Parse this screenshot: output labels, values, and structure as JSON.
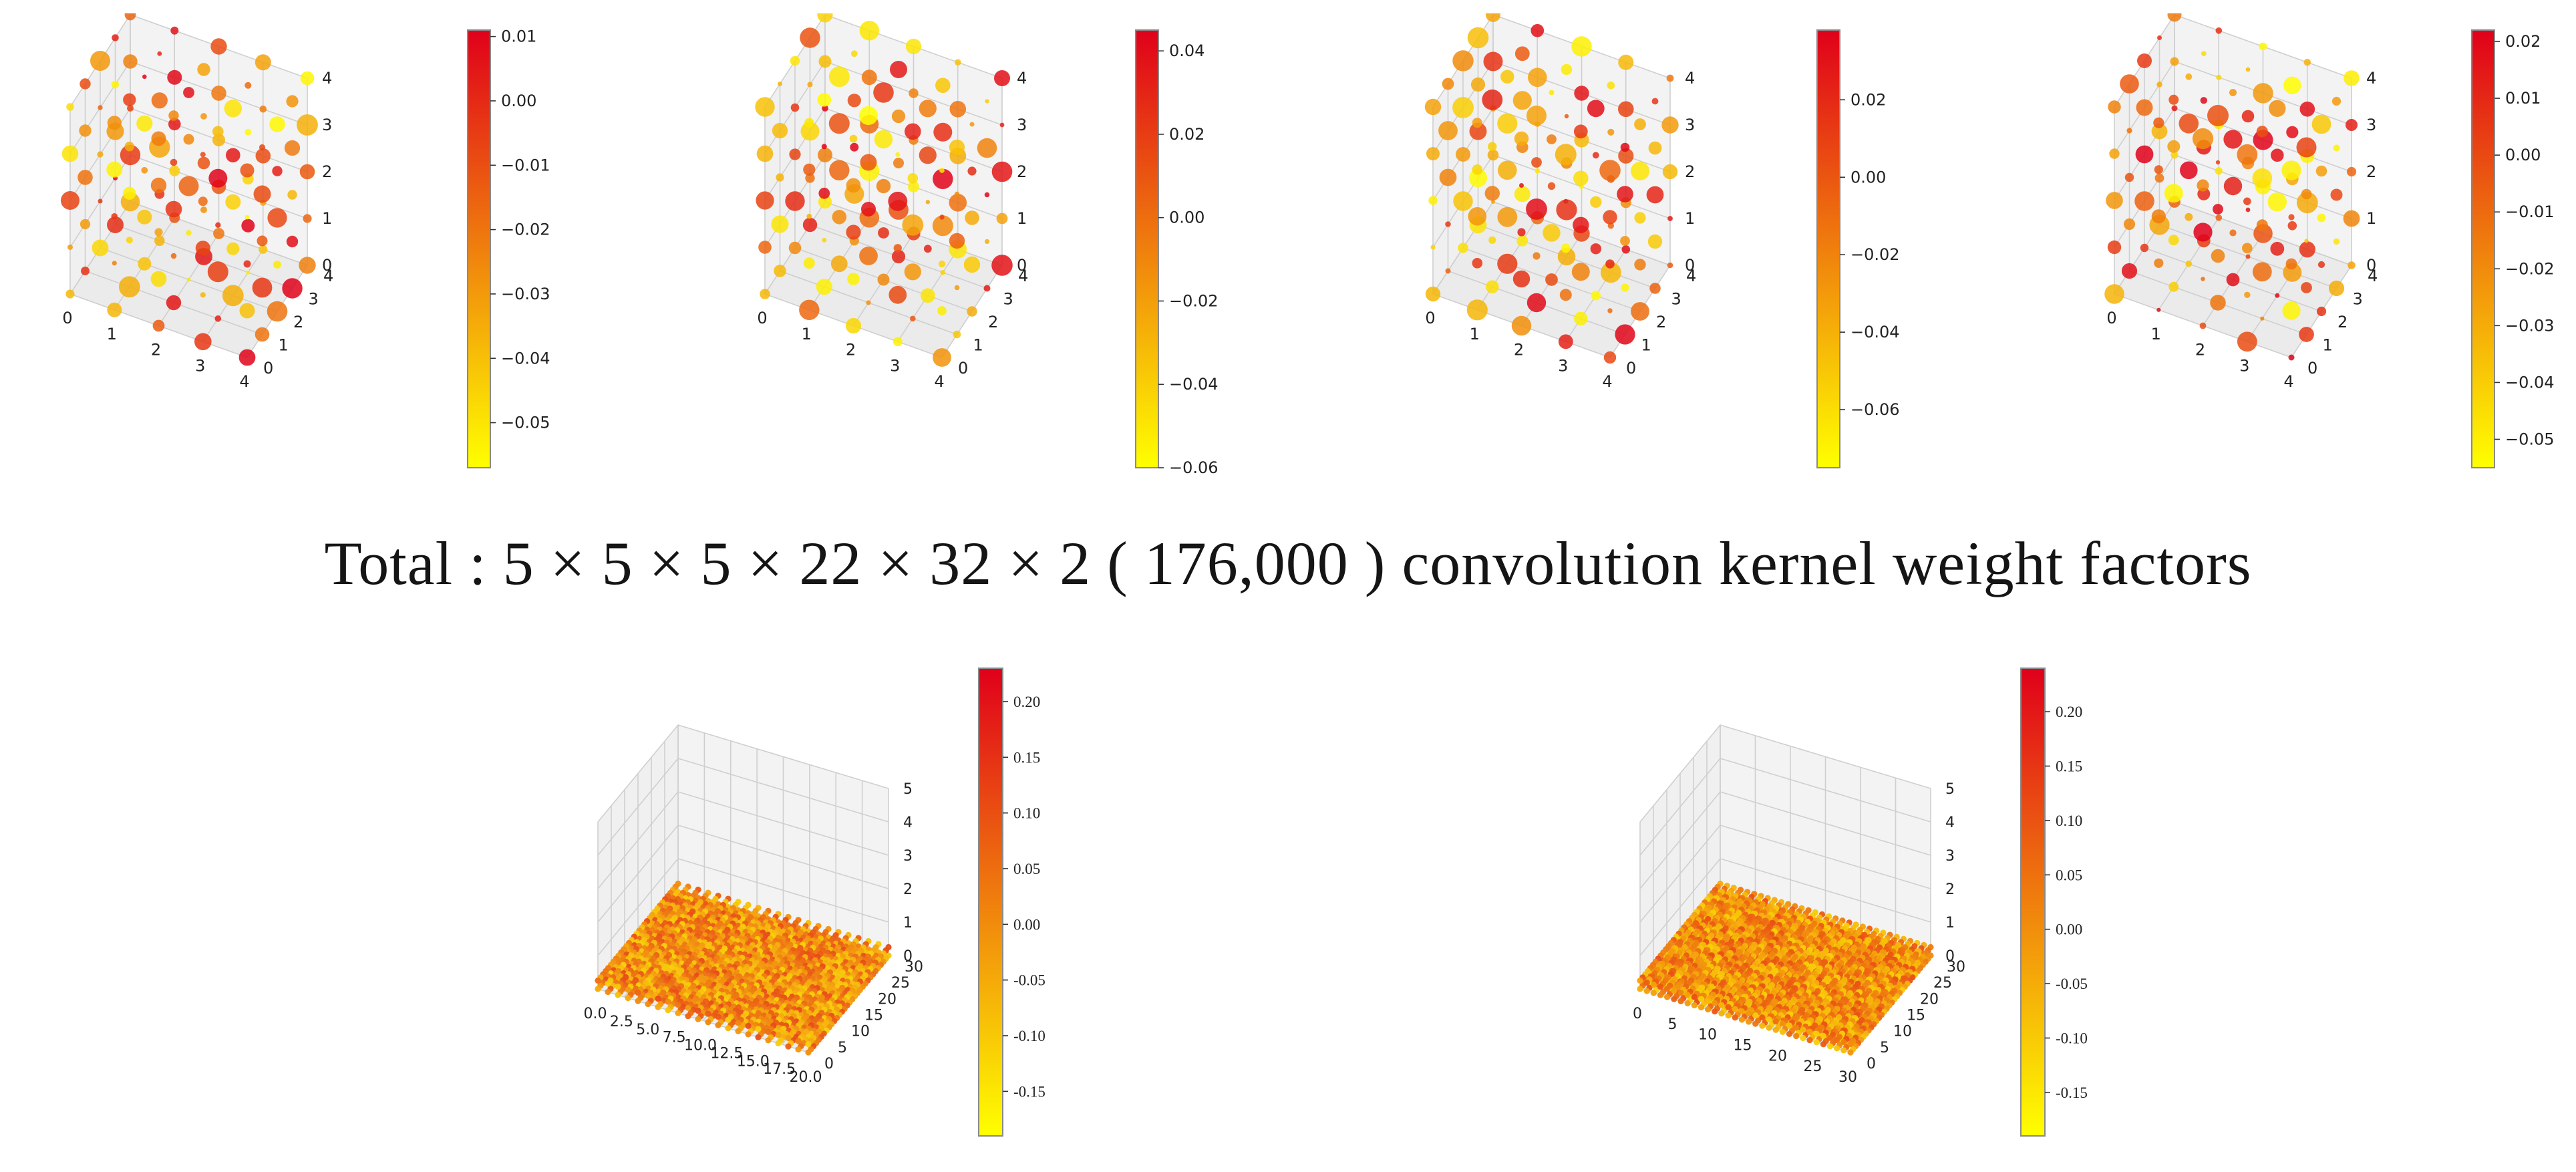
{
  "caption": "Total : 5 × 5 × 5 × 22 × 32 × 2 ( 176,000 ) convolution kernel weight factors",
  "colormap": {
    "name": "autumn_r",
    "low": "#ffff00",
    "high": "#e0001a",
    "edge": "#8a8a8a"
  },
  "chart_data": [
    {
      "id": "kernel-1",
      "type": "scatter3d",
      "title": "",
      "x_ticks": [
        "0",
        "1",
        "2",
        "3",
        "4"
      ],
      "y_ticks": [
        "0",
        "1",
        "2",
        "3",
        "4"
      ],
      "z_ticks": [
        "0",
        "1",
        "2",
        "3",
        "4"
      ],
      "xlim": [
        0,
        4
      ],
      "ylim": [
        0,
        4
      ],
      "zlim": [
        0,
        4
      ],
      "grid_shape": [
        5,
        5,
        5
      ],
      "seed": 11,
      "color_range": [
        -0.057,
        0.011
      ],
      "colorbar_ticks": [
        {
          "v": 0.01,
          "t": "0.01"
        },
        {
          "v": 0.0,
          "t": "0.00"
        },
        {
          "v": -0.01,
          "t": "−0.01"
        },
        {
          "v": -0.02,
          "t": "−0.02"
        },
        {
          "v": -0.03,
          "t": "−0.03"
        },
        {
          "v": -0.04,
          "t": "−0.04"
        },
        {
          "v": -0.05,
          "t": "−0.05"
        }
      ]
    },
    {
      "id": "kernel-2",
      "type": "scatter3d",
      "title": "",
      "x_ticks": [
        "0",
        "1",
        "2",
        "3",
        "4"
      ],
      "y_ticks": [
        "0",
        "1",
        "2",
        "3",
        "4"
      ],
      "z_ticks": [
        "0",
        "1",
        "2",
        "3",
        "4"
      ],
      "xlim": [
        0,
        4
      ],
      "ylim": [
        0,
        4
      ],
      "zlim": [
        0,
        4
      ],
      "grid_shape": [
        5,
        5,
        5
      ],
      "seed": 23,
      "color_range": [
        -0.06,
        0.045
      ],
      "colorbar_ticks": [
        {
          "v": 0.04,
          "t": "0.04"
        },
        {
          "v": 0.02,
          "t": "0.02"
        },
        {
          "v": 0.0,
          "t": "0.00"
        },
        {
          "v": -0.02,
          "t": "−0.02"
        },
        {
          "v": -0.04,
          "t": "−0.04"
        },
        {
          "v": -0.06,
          "t": "−0.06"
        }
      ]
    },
    {
      "id": "kernel-3",
      "type": "scatter3d",
      "title": "",
      "x_ticks": [
        "0",
        "1",
        "2",
        "3",
        "4"
      ],
      "y_ticks": [
        "0",
        "1",
        "2",
        "3",
        "4"
      ],
      "z_ticks": [
        "0",
        "1",
        "2",
        "3",
        "4"
      ],
      "xlim": [
        0,
        4
      ],
      "ylim": [
        0,
        4
      ],
      "zlim": [
        0,
        4
      ],
      "grid_shape": [
        5,
        5,
        5
      ],
      "seed": 37,
      "color_range": [
        -0.075,
        0.038
      ],
      "colorbar_ticks": [
        {
          "v": 0.02,
          "t": "0.02"
        },
        {
          "v": 0.0,
          "t": "0.00"
        },
        {
          "v": -0.02,
          "t": "−0.02"
        },
        {
          "v": -0.04,
          "t": "−0.04"
        },
        {
          "v": -0.06,
          "t": "−0.06"
        }
      ]
    },
    {
      "id": "kernel-4",
      "type": "scatter3d",
      "title": "",
      "x_ticks": [
        "0",
        "1",
        "2",
        "3",
        "4"
      ],
      "y_ticks": [
        "0",
        "1",
        "2",
        "3",
        "4"
      ],
      "z_ticks": [
        "0",
        "1",
        "2",
        "3",
        "4"
      ],
      "xlim": [
        0,
        4
      ],
      "ylim": [
        0,
        4
      ],
      "zlim": [
        0,
        4
      ],
      "grid_shape": [
        5,
        5,
        5
      ],
      "seed": 51,
      "color_range": [
        -0.055,
        0.022
      ],
      "colorbar_ticks": [
        {
          "v": 0.02,
          "t": "0.02"
        },
        {
          "v": 0.01,
          "t": "0.01"
        },
        {
          "v": 0.0,
          "t": "0.00"
        },
        {
          "v": -0.01,
          "t": "−0.01"
        },
        {
          "v": -0.02,
          "t": "−0.02"
        },
        {
          "v": -0.03,
          "t": "−0.03"
        },
        {
          "v": -0.04,
          "t": "−0.04"
        },
        {
          "v": -0.05,
          "t": "−0.05"
        }
      ]
    },
    {
      "id": "layer-1",
      "type": "scatter3d-dense",
      "title": "",
      "x_ticks": [
        "0.0",
        "2.5",
        "5.0",
        "7.5",
        "10.0",
        "12.5",
        "15.0",
        "17.5",
        "20.0"
      ],
      "y_ticks": [
        "0",
        "5",
        "10",
        "15",
        "20",
        "25",
        "30"
      ],
      "z_ticks": [
        "0",
        "1",
        "2",
        "3",
        "4",
        "5"
      ],
      "xlim": [
        0,
        20
      ],
      "ylim": [
        0,
        30
      ],
      "zlim": [
        0,
        5
      ],
      "grid_shape": [
        22,
        32,
        5
      ],
      "seed": 71,
      "color_range": [
        -0.19,
        0.23
      ],
      "colorbar_ticks": [
        {
          "v": 0.2,
          "t": "0.20"
        },
        {
          "v": 0.15,
          "t": "0.15"
        },
        {
          "v": 0.1,
          "t": "0.10"
        },
        {
          "v": 0.05,
          "t": "0.05"
        },
        {
          "v": 0.0,
          "t": "0.00"
        },
        {
          "v": -0.05,
          "t": "-0.05"
        },
        {
          "v": -0.1,
          "t": "-0.10"
        },
        {
          "v": -0.15,
          "t": "-0.15"
        }
      ]
    },
    {
      "id": "layer-2",
      "type": "scatter3d-dense",
      "title": "",
      "x_ticks": [
        "0",
        "5",
        "10",
        "15",
        "20",
        "25",
        "30"
      ],
      "y_ticks": [
        "0",
        "5",
        "10",
        "15",
        "20",
        "25",
        "30"
      ],
      "z_ticks": [
        "0",
        "1",
        "2",
        "3",
        "4",
        "5"
      ],
      "xlim": [
        0,
        30
      ],
      "ylim": [
        0,
        30
      ],
      "zlim": [
        0,
        5
      ],
      "grid_shape": [
        32,
        32,
        5
      ],
      "seed": 89,
      "color_range": [
        -0.19,
        0.24
      ],
      "colorbar_ticks": [
        {
          "v": 0.2,
          "t": "0.20"
        },
        {
          "v": 0.15,
          "t": "0.15"
        },
        {
          "v": 0.1,
          "t": "0.10"
        },
        {
          "v": 0.05,
          "t": "0.05"
        },
        {
          "v": 0.0,
          "t": "0.00"
        },
        {
          "v": -0.05,
          "t": "-0.05"
        },
        {
          "v": -0.1,
          "t": "-0.10"
        },
        {
          "v": -0.15,
          "t": "-0.15"
        }
      ]
    }
  ]
}
